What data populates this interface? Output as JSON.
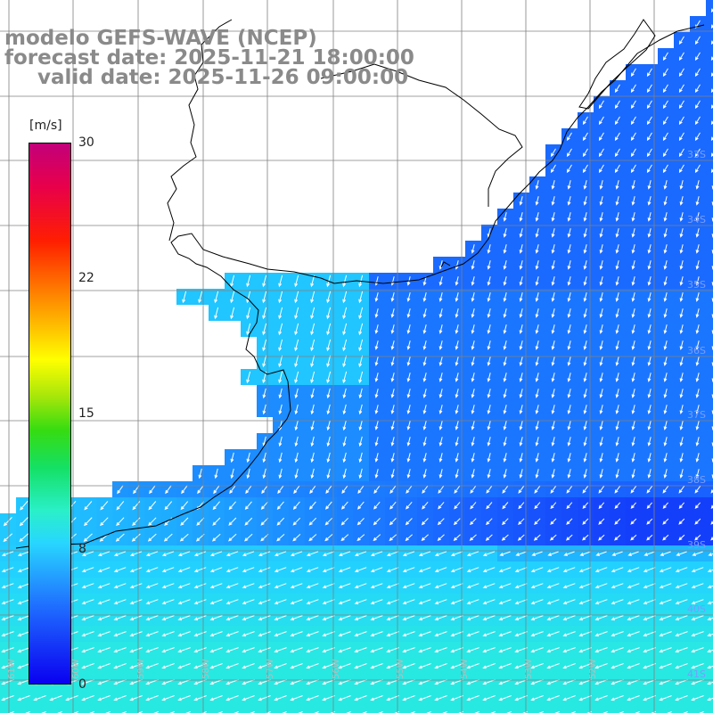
{
  "title": {
    "line1": "modelo GEFS-WAVE (NCEP)",
    "line2": "forecast date: 2025-11-21 18:00:00",
    "line3": "valid date: 2025-11-26 09:00:00"
  },
  "colorbar": {
    "unit": "[m/s]",
    "ticks": [
      "30",
      "22",
      "15",
      "8",
      "0"
    ],
    "range": [
      0,
      30
    ],
    "colors": [
      "#0a00f0",
      "#1f6bff",
      "#28d6ff",
      "#14e064",
      "#ffff00",
      "#ff7a00",
      "#ff1e00",
      "#c2007a"
    ]
  },
  "map": {
    "lat_labels": [
      "33S",
      "34S",
      "35S",
      "36S",
      "37S",
      "38S",
      "39S",
      "40S",
      "41S"
    ],
    "lon_labels": [
      "61W",
      "60W",
      "59W",
      "58W",
      "57W",
      "56W",
      "55W",
      "54W",
      "53W",
      "52W"
    ],
    "lat_label_color": "#7a9cff",
    "lon_label_color": "#bbbbbb",
    "land_color": "#ffffff",
    "grid_color": "#808080",
    "arrow_color": "#ffffff"
  }
}
